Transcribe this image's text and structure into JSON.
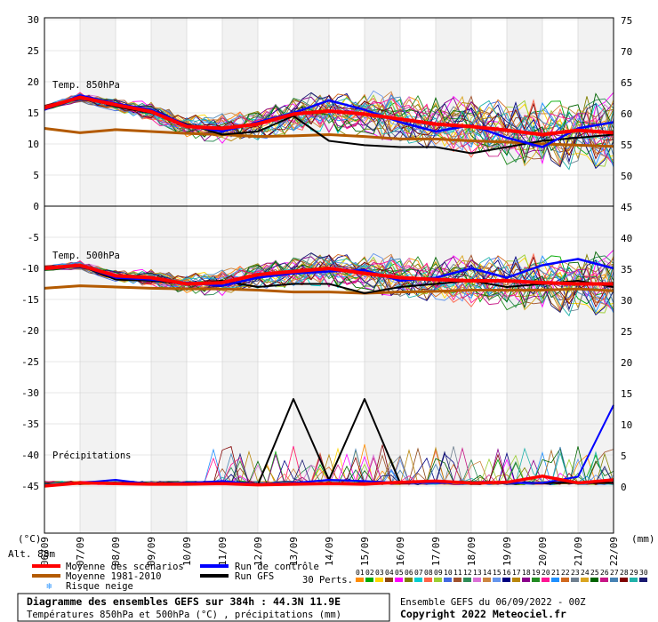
{
  "chart_data": {
    "type": "line",
    "title": "Diagramme des ensembles GEFS sur 384h : 44.3N 11.9E",
    "subtitle": "Températures 850hPa et 500hPa (°C) , précipitations (mm)",
    "run_info": "Ensemble GEFS du 06/09/2022 - 00Z",
    "copyright": "Copyright 2022 Meteociel.fr",
    "altitude": "Alt. 88m",
    "left_unit": "(°C)",
    "right_unit": "(mm)",
    "left_ticks": [
      "30",
      "25",
      "20",
      "15",
      "10",
      "5",
      "0",
      "-5",
      "-10",
      "-15",
      "-20",
      "-25",
      "-30",
      "-35",
      "-40",
      "-45"
    ],
    "right_ticks": [
      "75",
      "70",
      "65",
      "60",
      "55",
      "50",
      "45",
      "40",
      "35",
      "30",
      "25",
      "20",
      "15",
      "10",
      "5",
      "0"
    ],
    "x_ticks": [
      "06/09",
      "07/09",
      "08/09",
      "09/09",
      "10/09",
      "11/09",
      "12/09",
      "13/09",
      "14/09",
      "15/09",
      "16/09",
      "17/09",
      "18/09",
      "19/09",
      "20/09",
      "21/09",
      "22/09"
    ],
    "panel_labels": {
      "t850": "Temp. 850hPa",
      "t500": "Temp. 500hPa",
      "precip": "Précipitations"
    },
    "legend": {
      "mean": "Moyenne des scénarios",
      "control": "Run de contrôle",
      "climo": "Moyenne 1981-2010",
      "gfs": "Run GFS",
      "snow": "Risque neige",
      "perts_label": "30 Perts."
    },
    "colors": {
      "mean": "#ff0000",
      "control": "#0000ff",
      "climo": "#b35a00",
      "gfs": "#000000"
    },
    "pert_numbers": [
      "01",
      "02",
      "03",
      "04",
      "05",
      "06",
      "07",
      "08",
      "09",
      "10",
      "11",
      "12",
      "13",
      "14",
      "15",
      "16",
      "17",
      "18",
      "19",
      "20",
      "21",
      "22",
      "23",
      "24",
      "25",
      "26",
      "27",
      "28",
      "29",
      "30"
    ],
    "pert_colors": [
      "#ff8c00",
      "#00aa00",
      "#ffd700",
      "#8b4513",
      "#ff00ff",
      "#808000",
      "#00ced1",
      "#ff6347",
      "#9acd32",
      "#4169e1",
      "#a0522d",
      "#2e8b57",
      "#da70d6",
      "#cd853f",
      "#6495ed",
      "#000080",
      "#b8860b",
      "#8b008b",
      "#228b22",
      "#ff1493",
      "#1e90ff",
      "#d2691e",
      "#708090",
      "#daa520",
      "#006400",
      "#c71585",
      "#4682b4",
      "#800000",
      "#20b2aa",
      "#191970"
    ],
    "t850": {
      "mean": [
        15.8,
        17.5,
        16.3,
        15.2,
        12.8,
        12.5,
        13.2,
        14.8,
        15.3,
        14.8,
        14.0,
        13.2,
        12.8,
        12.2,
        11.5,
        12.2,
        11.8
      ],
      "control": [
        15.5,
        17.8,
        16.5,
        15.5,
        13.0,
        12.0,
        13.5,
        15.0,
        17.0,
        15.5,
        13.5,
        12.0,
        13.0,
        11.0,
        9.5,
        12.5,
        13.5
      ],
      "climo": [
        12.5,
        11.8,
        12.3,
        12.0,
        11.7,
        11.5,
        11.2,
        11.3,
        11.5,
        11.2,
        10.8,
        10.8,
        10.5,
        10.3,
        10.0,
        9.8,
        9.6
      ],
      "gfs": [
        15.5,
        17.7,
        16.0,
        15.0,
        13.2,
        11.5,
        12.0,
        14.5,
        10.5,
        9.8,
        9.5,
        9.5,
        8.5,
        9.5,
        10.5,
        11.0,
        11.5
      ]
    },
    "t500": {
      "mean": [
        -10.0,
        -9.5,
        -11.2,
        -11.5,
        -12.5,
        -12.3,
        -11.0,
        -10.5,
        -10.0,
        -10.8,
        -11.5,
        -11.8,
        -12.0,
        -12.0,
        -12.3,
        -12.5,
        -12.5
      ],
      "control": [
        -10.0,
        -9.5,
        -11.5,
        -11.8,
        -12.3,
        -12.8,
        -11.5,
        -10.8,
        -10.5,
        -10.3,
        -12.0,
        -11.5,
        -10.0,
        -11.5,
        -9.5,
        -8.5,
        -10.0
      ],
      "climo": [
        -13.2,
        -12.8,
        -13.0,
        -13.2,
        -13.3,
        -13.3,
        -13.5,
        -13.8,
        -13.8,
        -14.0,
        -13.8,
        -13.7,
        -13.5,
        -13.5,
        -13.5,
        -13.3,
        -13.6
      ],
      "gfs": [
        -10.0,
        -9.5,
        -11.8,
        -12.0,
        -12.5,
        -12.0,
        -13.0,
        -12.5,
        -12.5,
        -14.0,
        -13.0,
        -12.5,
        -12.0,
        -13.0,
        -12.5,
        -12.0,
        -13.0
      ]
    },
    "precip": {
      "mean": [
        0,
        0.5,
        0.4,
        0.3,
        0.3,
        0.4,
        0.2,
        0.3,
        0.4,
        0.3,
        0.6,
        0.8,
        0.5,
        0.6,
        1.6,
        0.5,
        1.0
      ],
      "control": [
        0,
        0.5,
        1.0,
        0.3,
        0.5,
        0.8,
        0.3,
        0.5,
        1.0,
        0.8,
        0.5,
        0.5,
        0.5,
        0.5,
        0.5,
        1.5,
        13.0
      ],
      "gfs": [
        0,
        0.5,
        0.5,
        0.4,
        0.5,
        0.5,
        0.2,
        14.0,
        1.0,
        14.0,
        0.5,
        0.5,
        0.5,
        0.5,
        0.5,
        0.5,
        0.5
      ]
    }
  }
}
